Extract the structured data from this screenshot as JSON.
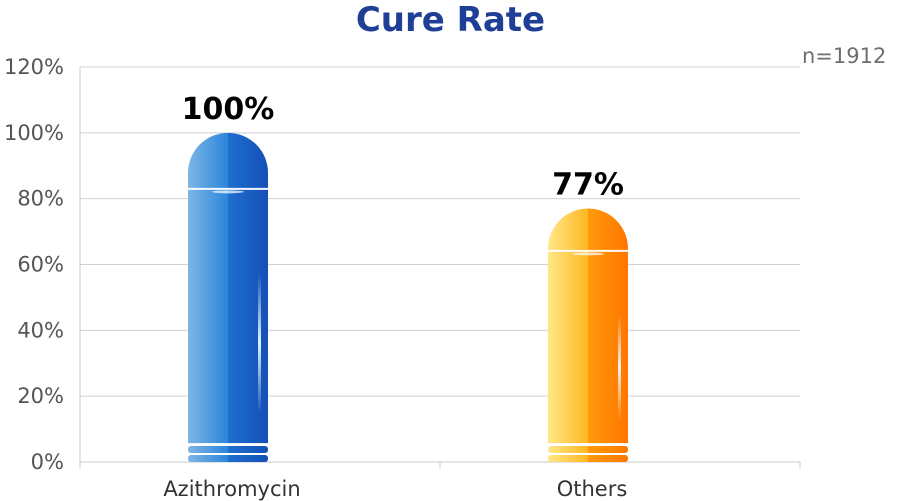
{
  "chart_data": {
    "type": "bar",
    "title": "Cure Rate",
    "annotation": "n=1912",
    "categories": [
      "Azithromycin",
      "Others"
    ],
    "values": [
      100,
      77
    ],
    "data_labels": [
      "100%",
      "77%"
    ],
    "y_ticks": [
      "0%",
      "20%",
      "40%",
      "60%",
      "80%",
      "100%",
      "120%"
    ],
    "y_tick_values": [
      0,
      20,
      40,
      60,
      80,
      100,
      120
    ],
    "ylim": [
      0,
      120
    ],
    "xlabel": "",
    "ylabel": "",
    "grid": true,
    "legend": "none",
    "colors": {
      "bar_1_light": "#79b4e6",
      "bar_1_mid": "#2f86db",
      "bar_1_dark": "#1550b8",
      "bar_2_light": "#ffe47a",
      "bar_2_mid": "#ffb21a",
      "bar_2_dark": "#ff7a00",
      "title": "#1f3e96",
      "grid": "#d0d0d0",
      "axis": "#c8c8c8",
      "tick_text": "#555555"
    }
  }
}
